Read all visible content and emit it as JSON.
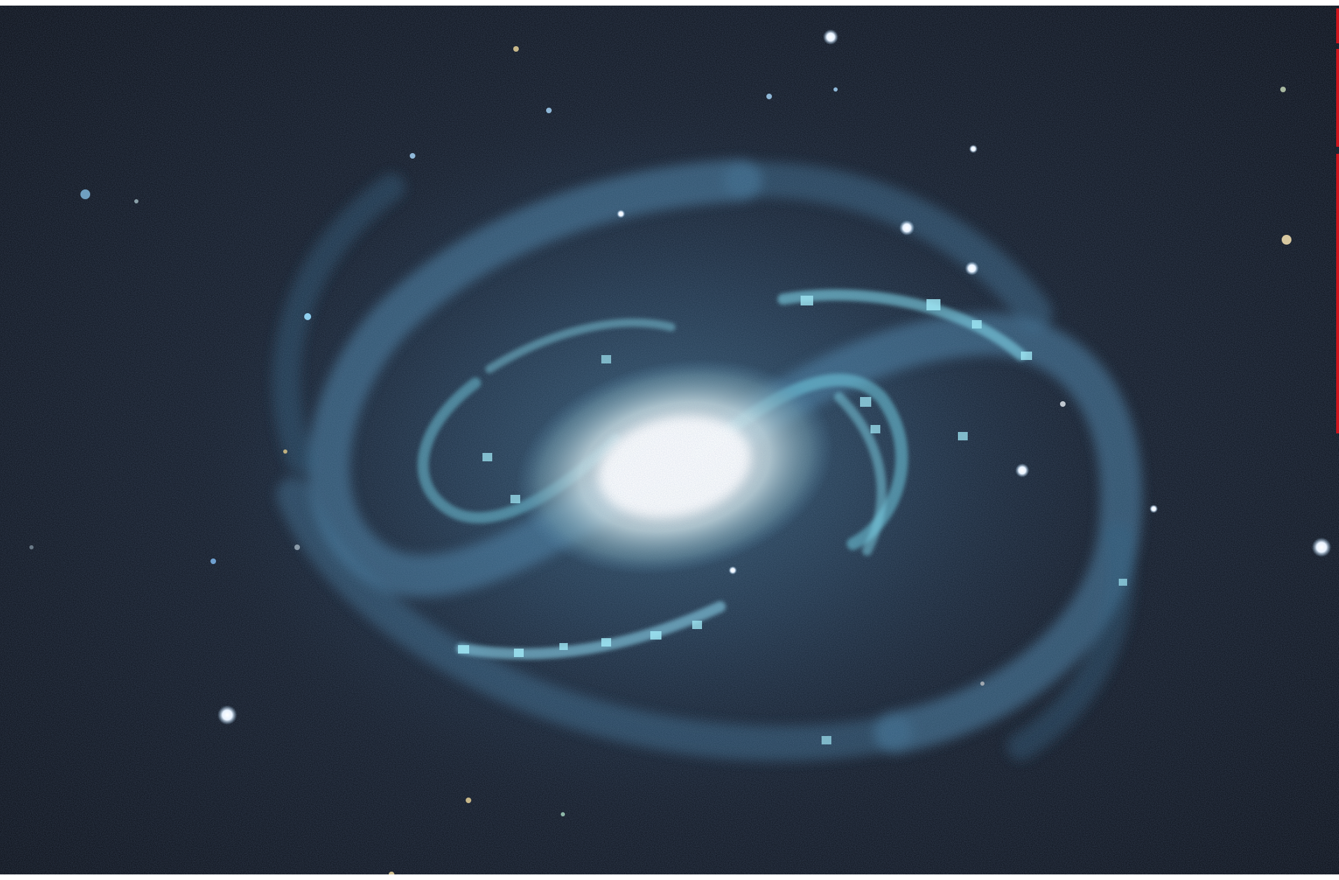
{
  "image": {
    "subject": "spiral-galaxy",
    "icon": "galaxy-photo",
    "colors": {
      "sky": "#141a24",
      "sky_edge": "#0e121a",
      "arm_blue": "#4f86a8",
      "arm_cyan": "#6fd2e6",
      "core": "#ffffff",
      "halo": "#b9d6e0",
      "star": "#f4f8ff",
      "red_marker": "#d0141c"
    }
  }
}
